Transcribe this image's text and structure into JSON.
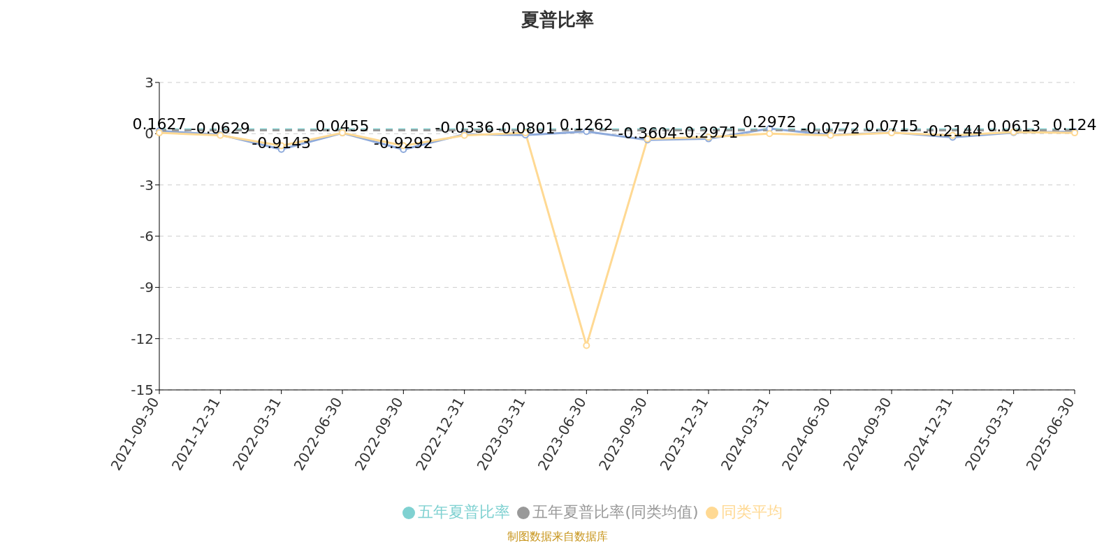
{
  "chart_data": {
    "type": "line",
    "title": "夏普比率",
    "categories": [
      "2021-09-30",
      "2021-12-31",
      "2022-03-31",
      "2022-06-30",
      "2022-09-30",
      "2022-12-31",
      "2023-03-31",
      "2023-06-30",
      "2023-09-30",
      "2023-12-31",
      "2024-03-31",
      "2024-06-30",
      "2024-09-30",
      "2024-12-31",
      "2025-03-31",
      "2025-06-30"
    ],
    "series": [
      {
        "color": "#8eaadb",
        "marker": "circle",
        "values": [
          0.1627,
          -0.0629,
          -0.9143,
          0.0455,
          -0.9292,
          -0.0336,
          -0.0801,
          0.1262,
          -0.3604,
          -0.2971,
          0.2972,
          -0.0772,
          0.0715,
          -0.2144,
          0.0613,
          0.124
        ],
        "value_labels": [
          "0.1627",
          "-0.0629",
          "-0.9143",
          "0.0455",
          "-0.9292",
          "-0.0336",
          "-0.0801",
          "0.1262",
          "-0.3604",
          "-0.2971",
          "0.2972",
          "-0.0772",
          "0.0715",
          "-0.2144",
          "0.0613",
          "0.124"
        ]
      },
      {
        "name": "同类平均",
        "color": "#ffd993",
        "marker": "circle",
        "values": [
          0.05,
          -0.1,
          -0.7,
          0.05,
          -0.7,
          -0.1,
          0.05,
          -12.4,
          -0.3,
          -0.2,
          0,
          -0.1,
          0.05,
          -0.1,
          0.1,
          0.05
        ]
      },
      {
        "name": "五年夏普比率",
        "color": "#7fd1d1",
        "marker": "none",
        "line_style": "dashed",
        "values": [
          0.25,
          0.25,
          0.25,
          0.25,
          0.25,
          0.25,
          0.25,
          0.25,
          0.25,
          0.25,
          0.25,
          0.25,
          0.25,
          0.25,
          0.25,
          0.25
        ]
      },
      {
        "name": "五年夏普比率(同类均值)",
        "color": "#999999",
        "marker": "none",
        "line_style": "dashed",
        "values": [
          0.2,
          0.2,
          0.2,
          0.2,
          0.2,
          0.2,
          0.2,
          0.2,
          0.2,
          0.2,
          0.2,
          0.2,
          0.2,
          0.2,
          0.2,
          0.2
        ]
      }
    ],
    "ylim": [
      -15,
      3
    ],
    "yticks": [
      -15,
      -12,
      -9,
      -6,
      -3,
      0,
      3
    ],
    "grid": "y",
    "legend": "bottom",
    "annotations": [
      "制图数据来自数据库"
    ]
  }
}
